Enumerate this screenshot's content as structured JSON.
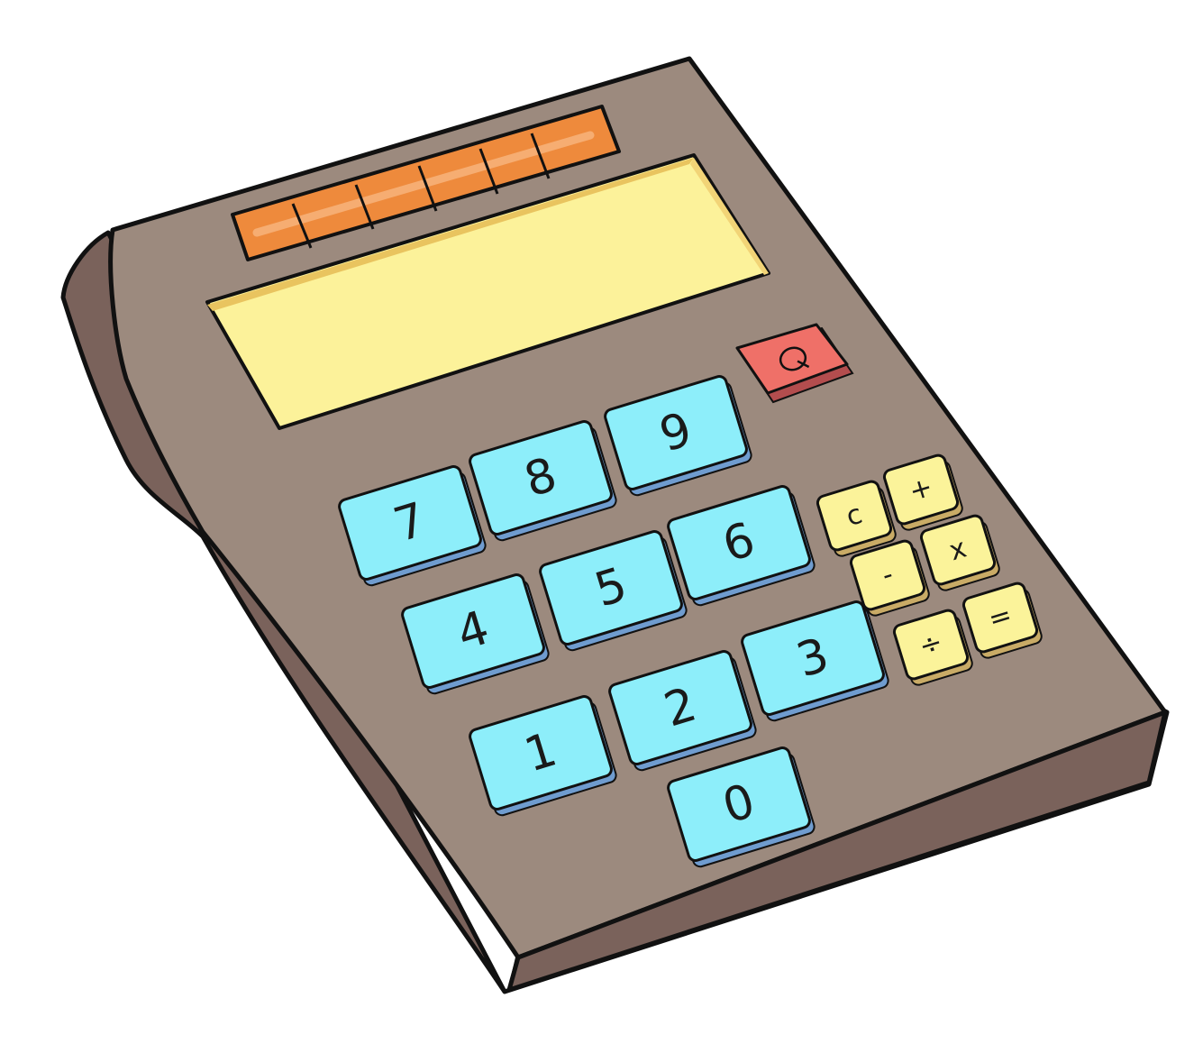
{
  "colors": {
    "body": "#9c8a7e",
    "body_side": "#7a625b",
    "outline": "#111111",
    "screen": "#fcf29a",
    "solar_panel": "#ee8a3c",
    "number_key": "#8deefa",
    "number_key_shadow": "#6f9ccf",
    "operator_key": "#fbf39a",
    "operator_key_shadow": "#c9ab66",
    "power_key": "#ef7068",
    "power_key_shadow": "#b34d4e"
  },
  "power_key": {
    "icon": "power-icon"
  },
  "number_keys": [
    {
      "label": "7"
    },
    {
      "label": "8"
    },
    {
      "label": "9"
    },
    {
      "label": "4"
    },
    {
      "label": "5"
    },
    {
      "label": "6"
    },
    {
      "label": "1"
    },
    {
      "label": "2"
    },
    {
      "label": "3"
    },
    {
      "label": "0"
    }
  ],
  "operator_keys": [
    {
      "label": "c"
    },
    {
      "label": "+"
    },
    {
      "label": "-"
    },
    {
      "label": "x"
    },
    {
      "label": "÷"
    },
    {
      "label": "="
    }
  ]
}
